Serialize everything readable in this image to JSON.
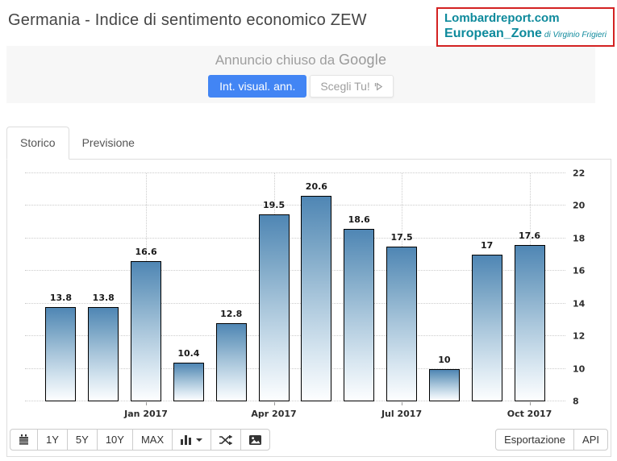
{
  "header": {
    "title": "Germania - Indice di sentimento economico ZEW",
    "brand": {
      "line1": "Lombardreport.com",
      "line2": "European_Zone",
      "byline": "di Virginio Frigieri",
      "text_color": "#0e8a9c",
      "border_color": "#d32222"
    }
  },
  "ad": {
    "closed_text": "Annuncio chiuso da",
    "google_label": "Google",
    "primary_button": "Int. visual. ann.",
    "secondary_button": "Scegli Tu!",
    "adchoices_icon": "adchoices-triangle-icon",
    "primary_color": "#4285f4"
  },
  "tabs": [
    {
      "label": "Storico",
      "active": true
    },
    {
      "label": "Previsione",
      "active": false
    }
  ],
  "chart_data": {
    "type": "bar",
    "title": "Germania - Indice di sentimento economico ZEW",
    "values": [
      13.8,
      13.8,
      16.6,
      10.4,
      12.8,
      19.5,
      20.6,
      18.6,
      17.5,
      10,
      17,
      17.6
    ],
    "value_labels": [
      "13.8",
      "13.8",
      "16.6",
      "10.4",
      "12.8",
      "19.5",
      "20.6",
      "18.6",
      "17.5",
      "10",
      "17",
      "17.6"
    ],
    "x_tick_labels": [
      {
        "index": 2,
        "label": "Jan 2017"
      },
      {
        "index": 5,
        "label": "Apr 2017"
      },
      {
        "index": 8,
        "label": "Jul 2017"
      },
      {
        "index": 11,
        "label": "Oct 2017"
      }
    ],
    "y_ticks": [
      8,
      10,
      12,
      14,
      16,
      18,
      20,
      22
    ],
    "ylim": [
      8,
      22
    ],
    "y_axis_side": "right",
    "grid": "dotted",
    "legend": "none",
    "bar_color_top": "#4f86b4",
    "bar_color_bottom": "#fdfeff",
    "bar_border_color": "#000000"
  },
  "toolbar": {
    "calendar_icon": "calendar-icon",
    "range_buttons": [
      "1Y",
      "5Y",
      "10Y",
      "MAX"
    ],
    "chart_type_icon": "bar-chart-icon",
    "compare_icon": "shuffle-icon",
    "snapshot_icon": "image-icon",
    "export_label": "Esportazione",
    "api_label": "API"
  }
}
